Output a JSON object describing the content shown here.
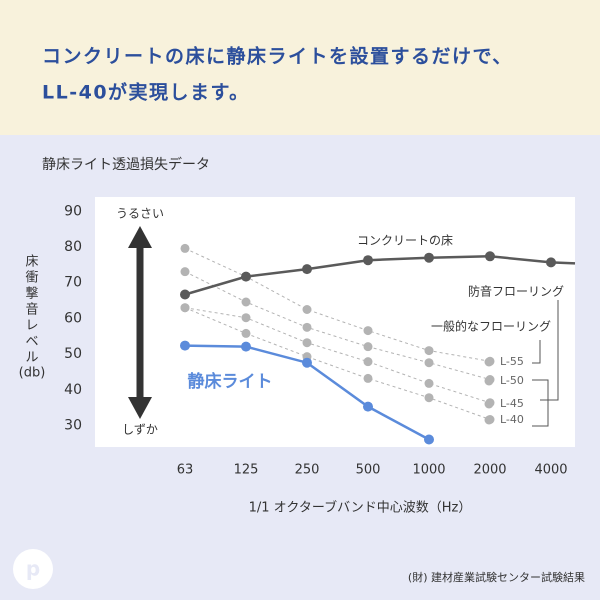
{
  "header": {
    "lines": [
      "コンクリートの床に静床ライトを設置するだけで、",
      "LL-40が実現します。"
    ]
  },
  "chart_data": {
    "type": "line",
    "title": "静床ライト透過損失データ",
    "y_label_lines": [
      "床",
      "衝",
      "撃",
      "音",
      "レ",
      "ベ",
      "ル",
      "(db)"
    ],
    "x_label": "1/1 オクターブバンド中心波数（Hz）",
    "categories": [
      "63",
      "125",
      "250",
      "500",
      "1000",
      "2000",
      "4000"
    ],
    "ylim": [
      24,
      94
    ],
    "yticks": [
      30,
      40,
      50,
      60,
      70,
      80,
      90
    ],
    "series": [
      {
        "name": "コンクリートの床",
        "color": "#5a5a5a",
        "dash": false,
        "values": [
          66.7,
          71.7,
          73.8,
          76.3,
          77,
          77.4,
          75.7
        ]
      },
      {
        "name": "静床ライト",
        "color": "#5b8bdb",
        "dash": false,
        "values": [
          52.4,
          52.1,
          47.6,
          35.3,
          26.1,
          null,
          null
        ]
      },
      {
        "name": "L-55",
        "color": "#b3b3b3",
        "dash": true,
        "values": [
          79.6,
          71.7,
          62.5,
          56.6,
          51,
          48,
          null
        ]
      },
      {
        "name": "L-50",
        "color": "#b3b3b3",
        "dash": true,
        "values": [
          73.1,
          64.6,
          57.5,
          52.1,
          47.6,
          42.9,
          null
        ]
      },
      {
        "name": "L-45",
        "color": "#b3b3b3",
        "dash": true,
        "values": [
          63,
          60.2,
          53.2,
          47.9,
          41.8,
          36.4,
          null
        ]
      },
      {
        "name": "L-40",
        "color": "#b3b3b3",
        "dash": true,
        "values": [
          63,
          55.8,
          49.3,
          43.2,
          37.8,
          31.7,
          null
        ]
      }
    ],
    "annotations": {
      "loud": "うるさい",
      "quiet": "しずか",
      "soundproof": "防音フローリング",
      "general": "一般的なフローリング"
    },
    "source": "(財) 建材産業試験センター試験結果"
  }
}
